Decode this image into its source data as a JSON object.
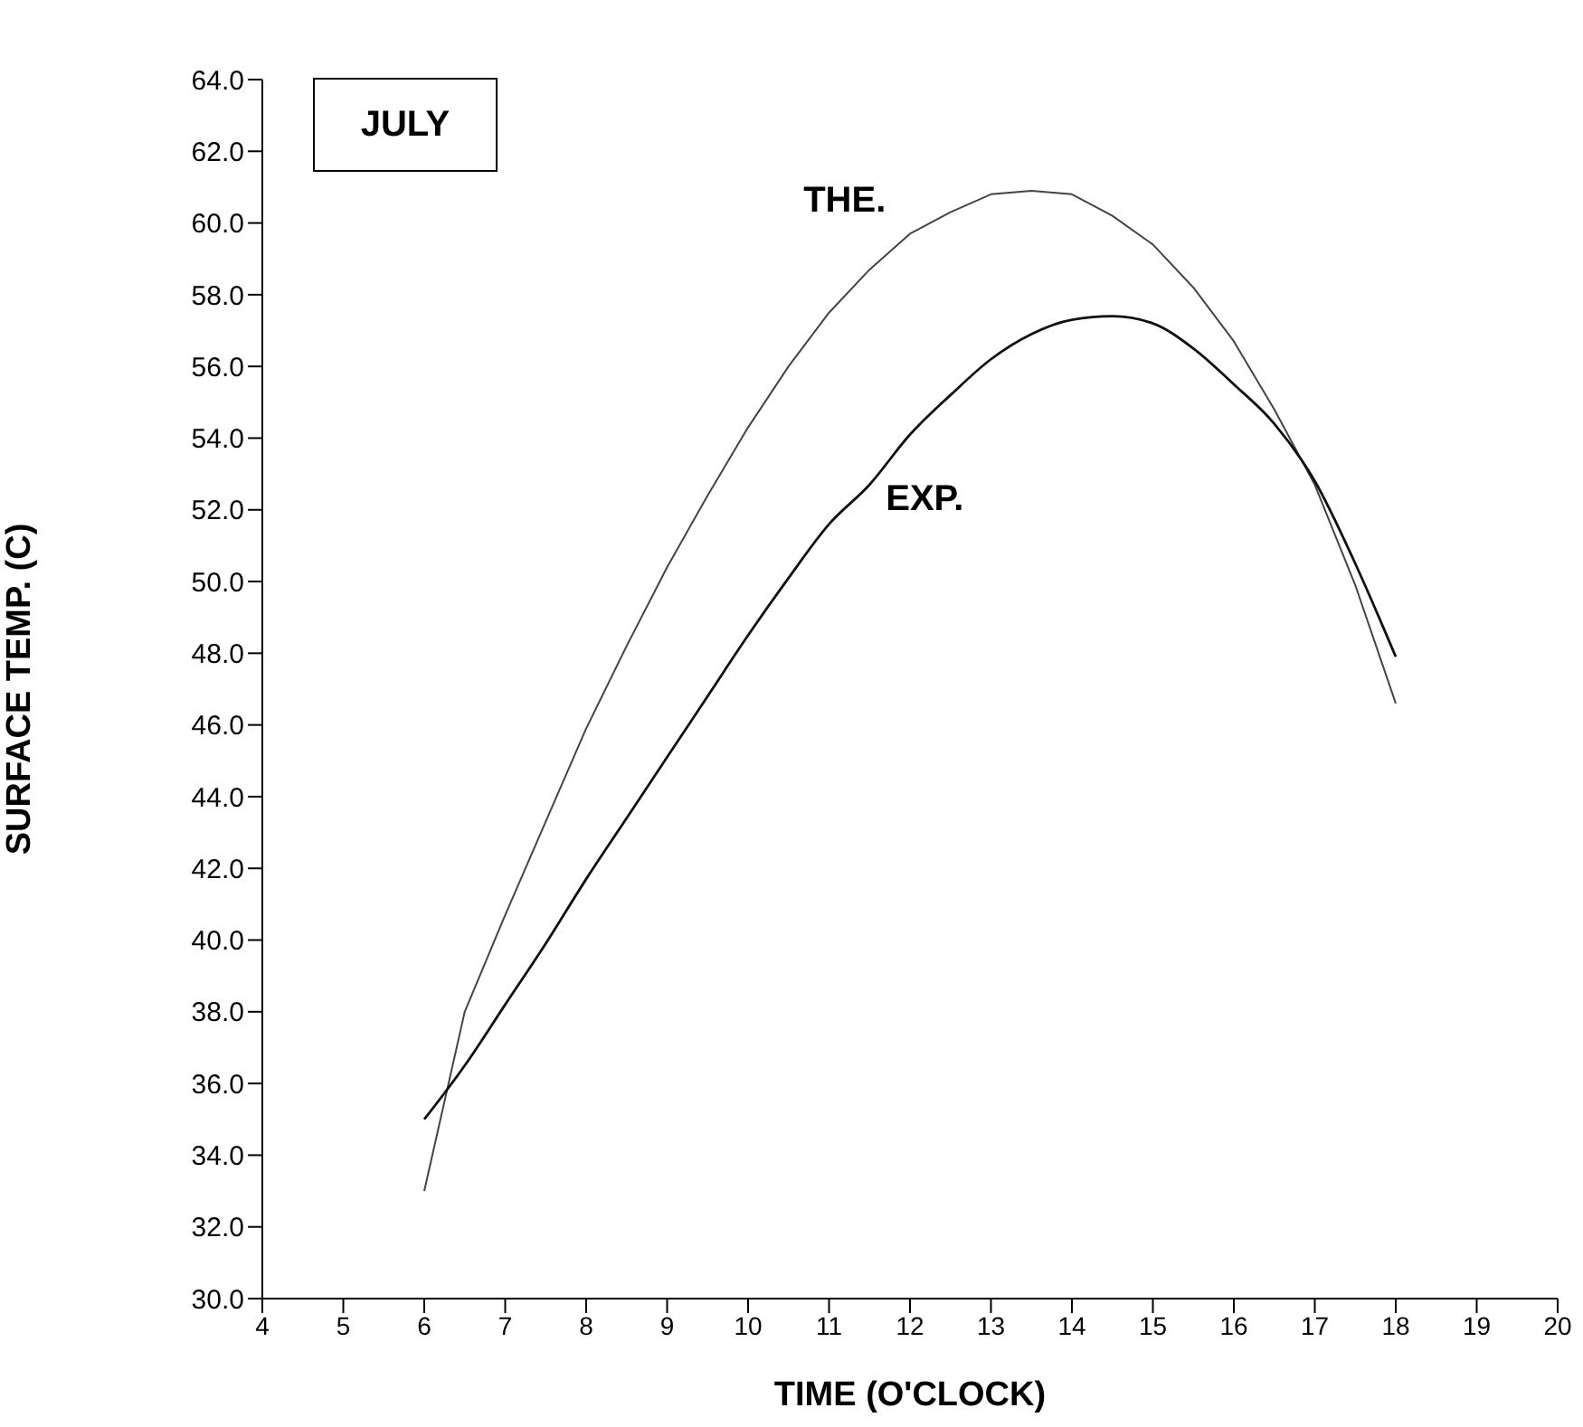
{
  "chart_data": {
    "type": "line",
    "xlabel": "TIME (O'CLOCK)",
    "ylabel": "SURFACE TEMP. (C)",
    "annotations": [
      "JULY"
    ],
    "xlim": [
      4,
      20
    ],
    "xticks": [
      4,
      5,
      6,
      7,
      8,
      9,
      10,
      11,
      12,
      13,
      14,
      15,
      16,
      17,
      18,
      19,
      20
    ],
    "ylim": [
      30,
      64
    ],
    "yticks": [
      {
        "value": 30,
        "label": "30.0"
      },
      {
        "value": 32,
        "label": "32.0"
      },
      {
        "value": 34,
        "label": "34.0"
      },
      {
        "value": 36,
        "label": "36.0"
      },
      {
        "value": 38,
        "label": "38.0"
      },
      {
        "value": 40,
        "label": "40.0"
      },
      {
        "value": 42,
        "label": "42.0"
      },
      {
        "value": 44,
        "label": "44.0"
      },
      {
        "value": 46,
        "label": "46.0"
      },
      {
        "value": 48,
        "label": "48.0"
      },
      {
        "value": 50,
        "label": "50.0"
      },
      {
        "value": 52,
        "label": "52.0"
      },
      {
        "value": 54,
        "label": "54.0"
      },
      {
        "value": 56,
        "label": "56.0"
      },
      {
        "value": 58,
        "label": "58.0"
      },
      {
        "value": 60,
        "label": "60.0"
      },
      {
        "value": 62,
        "label": "62.0"
      },
      {
        "value": 64,
        "label": "64.0"
      }
    ],
    "grid": false,
    "legend": false,
    "marker": "none",
    "line_style": "solid",
    "series": [
      {
        "name": "THE.",
        "color": "#444444",
        "x": [
          6,
          6.5,
          7,
          7.5,
          8,
          8.5,
          9,
          9.5,
          10,
          10.5,
          11,
          11.5,
          12,
          12.5,
          13,
          13.5,
          14,
          14.5,
          15,
          15.5,
          16,
          16.5,
          17,
          17.5,
          18
        ],
        "values": [
          33.0,
          38.0,
          40.7,
          43.3,
          45.9,
          48.2,
          50.4,
          52.4,
          54.3,
          56.0,
          57.5,
          58.7,
          59.7,
          60.3,
          60.8,
          60.9,
          60.8,
          60.2,
          59.4,
          58.2,
          56.7,
          54.8,
          52.7,
          49.9,
          46.6
        ]
      },
      {
        "name": "EXP.",
        "color": "#111111",
        "x": [
          6,
          6.5,
          7,
          7.5,
          8,
          8.5,
          9,
          9.5,
          10,
          10.5,
          11,
          11.5,
          12,
          12.5,
          13,
          13.5,
          14,
          14.5,
          15,
          15.5,
          16,
          16.5,
          17,
          17.5,
          18
        ],
        "values": [
          35.0,
          36.5,
          38.2,
          39.9,
          41.7,
          43.4,
          45.1,
          46.8,
          48.5,
          50.1,
          51.6,
          52.7,
          54.1,
          55.2,
          56.2,
          56.9,
          57.3,
          57.4,
          57.2,
          56.5,
          55.5,
          54.4,
          52.8,
          50.5,
          47.9
        ]
      }
    ]
  }
}
